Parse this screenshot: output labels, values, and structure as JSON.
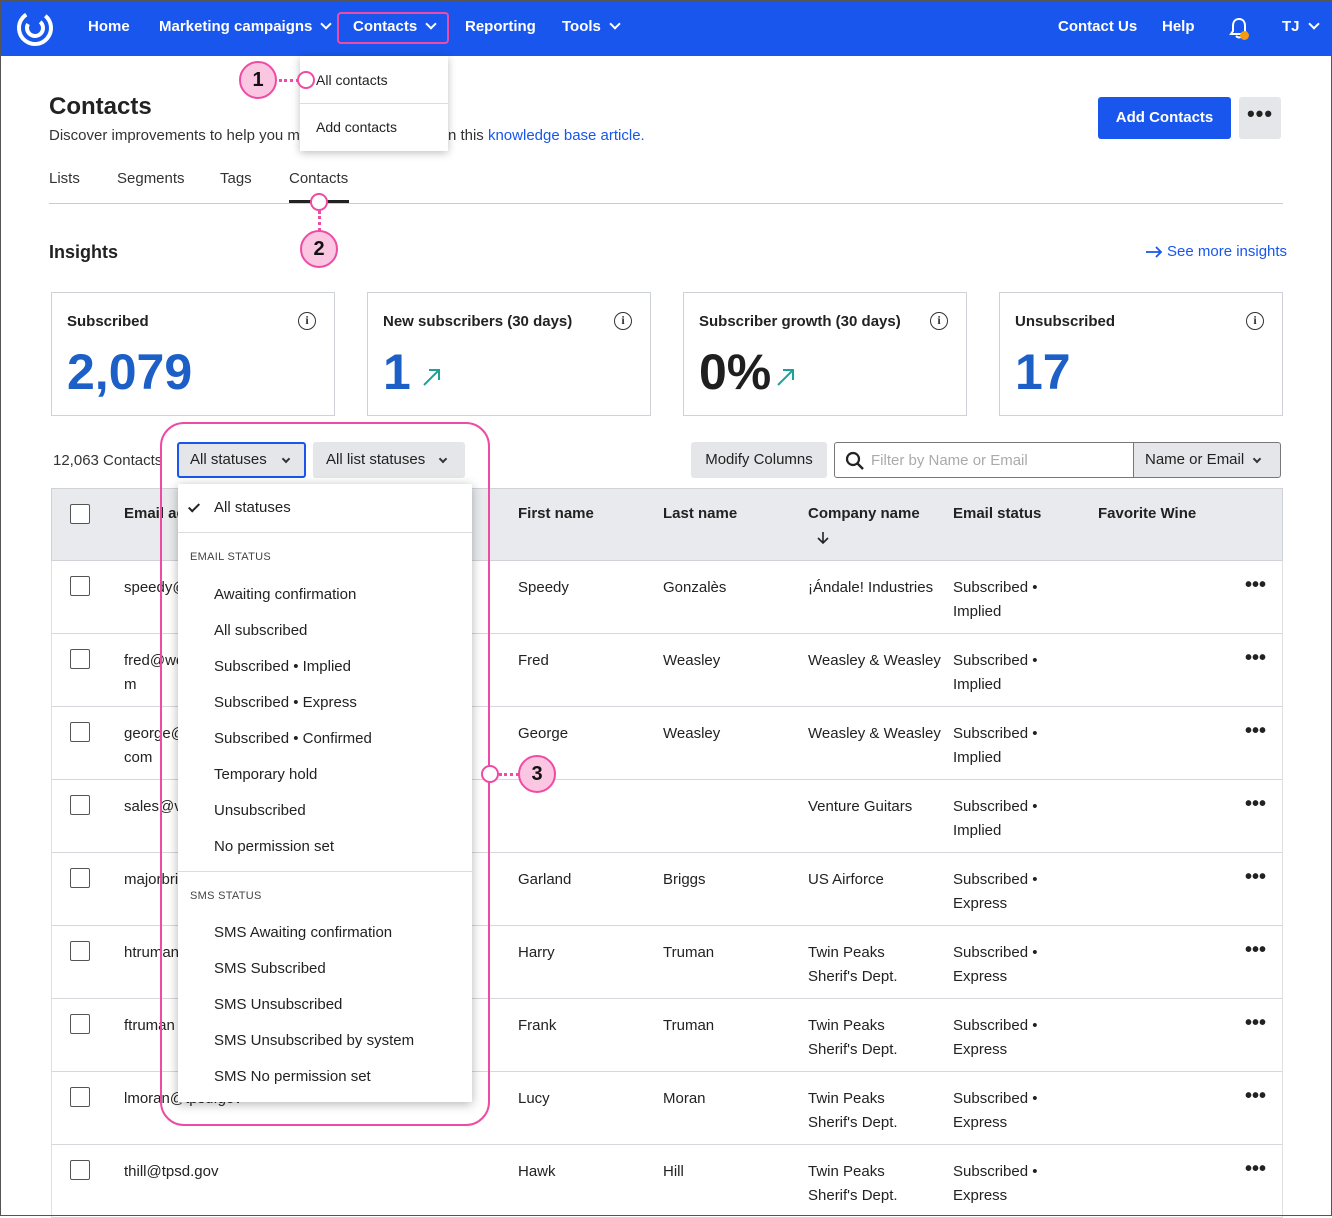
{
  "nav": {
    "home": "Home",
    "marketing": "Marketing campaigns",
    "contacts": "Contacts",
    "reporting": "Reporting",
    "tools": "Tools",
    "contact_us": "Contact Us",
    "help": "Help",
    "user": "TJ",
    "menu": {
      "all_contacts": "All contacts",
      "add_contacts": "Add contacts"
    }
  },
  "header": {
    "title": "Contacts",
    "subtitle_pre": "Discover improvements to help you m",
    "subtitle_mid": "n this ",
    "subtitle_link": "knowledge base article.",
    "add_button": "Add Contacts",
    "more_button": "•••"
  },
  "tabs": {
    "lists": "Lists",
    "segments": "Segments",
    "tags": "Tags",
    "contacts": "Contacts"
  },
  "insights": {
    "title": "Insights",
    "see_more": "See more insights",
    "cards": [
      {
        "label": "Subscribed",
        "value": "2,079",
        "color": "#1b5fc7"
      },
      {
        "label": "New subscribers (30 days)",
        "value": "1",
        "color": "#1b5fc7"
      },
      {
        "label": "Subscriber growth (30 days)",
        "value": "0%",
        "color": "#1f1f1f"
      },
      {
        "label": "Unsubscribed",
        "value": "17",
        "color": "#1b5fc7"
      }
    ]
  },
  "filters": {
    "count": "12,063 Contacts",
    "status": "All statuses",
    "list_status": "All list statuses",
    "modify": "Modify Columns",
    "search_placeholder": "Filter by Name or Email",
    "search_type": "Name or Email"
  },
  "status_menu": {
    "selected": "All statuses",
    "email_group": "EMAIL STATUS",
    "email_options": [
      "Awaiting confirmation",
      "All subscribed",
      "Subscribed • Implied",
      "Subscribed • Express",
      "Subscribed • Confirmed",
      "Temporary hold",
      "Unsubscribed",
      "No permission set"
    ],
    "sms_group": "SMS STATUS",
    "sms_options": [
      "SMS Awaiting confirmation",
      "SMS Subscribed",
      "SMS Unsubscribed",
      "SMS Unsubscribed by system",
      "SMS No permission set"
    ]
  },
  "table": {
    "headers": {
      "email": "Email ad",
      "first": "First name",
      "last": "Last name",
      "company": "Company name",
      "email_status": "Email status",
      "wine": "Favorite Wine"
    },
    "rows": [
      {
        "email1": "speedy@",
        "email2": "",
        "first": "Speedy",
        "last": "Gonzalès",
        "co1": "¡Ándale! Industries",
        "co2": "",
        "st1": "Subscribed •",
        "st2": "Implied"
      },
      {
        "email1": "fred@we",
        "email2": "m",
        "first": "Fred",
        "last": "Weasley",
        "co1": "Weasley & Weasley",
        "co2": "",
        "st1": "Subscribed •",
        "st2": "Implied"
      },
      {
        "email1": "george@",
        "email2": "com",
        "first": "George",
        "last": "Weasley",
        "co1": "Weasley & Weasley",
        "co2": "",
        "st1": "Subscribed •",
        "st2": "Implied"
      },
      {
        "email1": "sales@v",
        "email2": "",
        "first": "",
        "last": "",
        "co1": "Venture Guitars",
        "co2": "",
        "st1": "Subscribed •",
        "st2": "Implied"
      },
      {
        "email1": "majorbri",
        "email2": "",
        "first": "Garland",
        "last": "Briggs",
        "co1": "US Airforce",
        "co2": "",
        "st1": "Subscribed •",
        "st2": "Express"
      },
      {
        "email1": "htruman",
        "email2": "",
        "first": "Harry",
        "last": "Truman",
        "co1": "Twin Peaks",
        "co2": "Sherif's Dept.",
        "st1": "Subscribed •",
        "st2": "Express"
      },
      {
        "email1": "ftruman",
        "email2": "",
        "first": "Frank",
        "last": "Truman",
        "co1": "Twin Peaks",
        "co2": "Sherif's Dept.",
        "st1": "Subscribed •",
        "st2": "Express"
      },
      {
        "email1": "lmoran@tpsd.gov",
        "email2": "",
        "first": "Lucy",
        "last": "Moran",
        "co1": "Twin Peaks",
        "co2": "Sherif's Dept.",
        "st1": "Subscribed •",
        "st2": "Express"
      },
      {
        "email1": "thill@tpsd.gov",
        "email2": "",
        "first": "Hawk",
        "last": "Hill",
        "co1": "Twin Peaks",
        "co2": "Sherif's Dept.",
        "st1": "Subscribed •",
        "st2": "Express"
      }
    ]
  },
  "callouts": [
    "1",
    "2",
    "3"
  ],
  "colors": {
    "brand": "#1856ed",
    "accent_pink": "#ef4ba5",
    "callout_fill": "#fbc6e1",
    "teal_arrow": "#1aa39a"
  }
}
